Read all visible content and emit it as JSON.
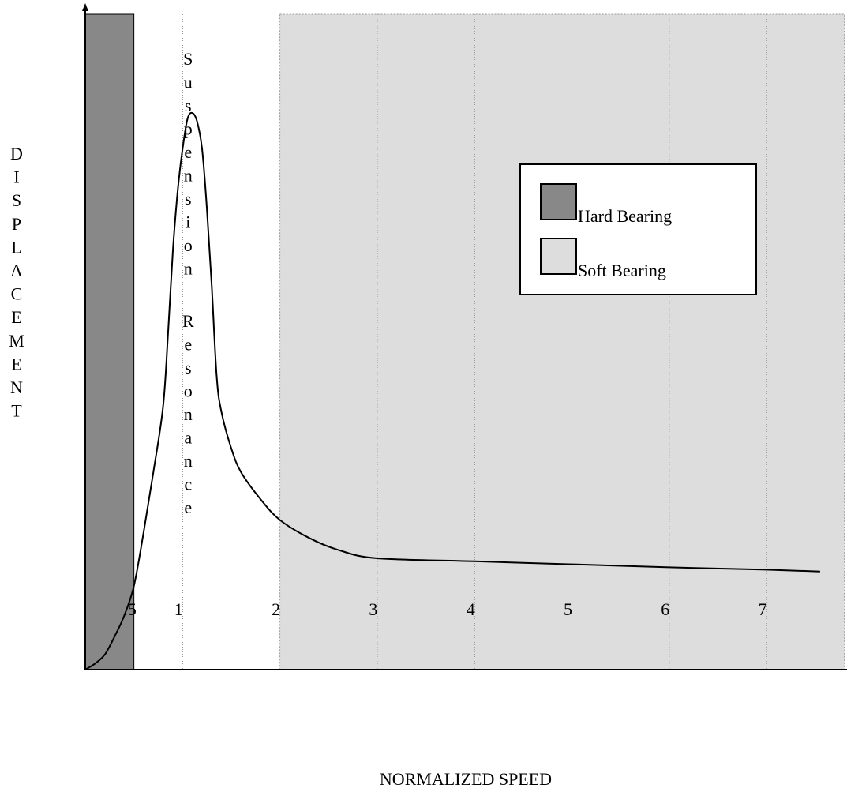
{
  "chart_data": {
    "type": "line",
    "title": "",
    "xlabel": "NORMALIZED SPEED",
    "ylabel": "DISPLACEMENT",
    "xlim": [
      0,
      7.8
    ],
    "ylim": [
      0,
      1
    ],
    "grid": true,
    "legend_position": "top-right",
    "x_tick_labels": [
      {
        "value": 0.5,
        "label": ".5"
      },
      {
        "value": 1,
        "label": "1"
      },
      {
        "value": 2,
        "label": "2"
      },
      {
        "value": 3,
        "label": "3"
      },
      {
        "value": 4,
        "label": "4"
      },
      {
        "value": 5,
        "label": "5"
      },
      {
        "value": 6,
        "label": "6"
      },
      {
        "value": 7,
        "label": "7"
      }
    ],
    "regions": [
      {
        "name": "Hard Bearing",
        "x_range": [
          0,
          0.5
        ],
        "color": "#888888"
      },
      {
        "name": "Soft Bearing",
        "x_range": [
          2,
          7.8
        ],
        "color": "#dddddd"
      }
    ],
    "annotations": [
      {
        "text": "Suspension Resonance",
        "x": 1.0,
        "orientation": "vertical"
      }
    ],
    "series": [
      {
        "color": "#000000",
        "points": [
          [
            0,
            0
          ],
          [
            0.1,
            0.01
          ],
          [
            0.2,
            0.025
          ],
          [
            0.3,
            0.055
          ],
          [
            0.4,
            0.09
          ],
          [
            0.5,
            0.14
          ],
          [
            0.6,
            0.23
          ],
          [
            0.7,
            0.33
          ],
          [
            0.8,
            0.44
          ],
          [
            0.85,
            0.56
          ],
          [
            0.9,
            0.7
          ],
          [
            0.95,
            0.8
          ],
          [
            1.0,
            0.87
          ],
          [
            1.05,
            0.92
          ],
          [
            1.1,
            0.93
          ],
          [
            1.15,
            0.915
          ],
          [
            1.2,
            0.87
          ],
          [
            1.25,
            0.77
          ],
          [
            1.3,
            0.64
          ],
          [
            1.35,
            0.49
          ],
          [
            1.4,
            0.43
          ],
          [
            1.5,
            0.37
          ],
          [
            1.6,
            0.33
          ],
          [
            1.8,
            0.285
          ],
          [
            2.0,
            0.25
          ],
          [
            2.3,
            0.22
          ],
          [
            2.6,
            0.2
          ],
          [
            3.0,
            0.186
          ],
          [
            4.0,
            0.181
          ],
          [
            5.0,
            0.176
          ],
          [
            6.0,
            0.171
          ],
          [
            7.0,
            0.167
          ],
          [
            7.55,
            0.164
          ]
        ]
      }
    ]
  }
}
